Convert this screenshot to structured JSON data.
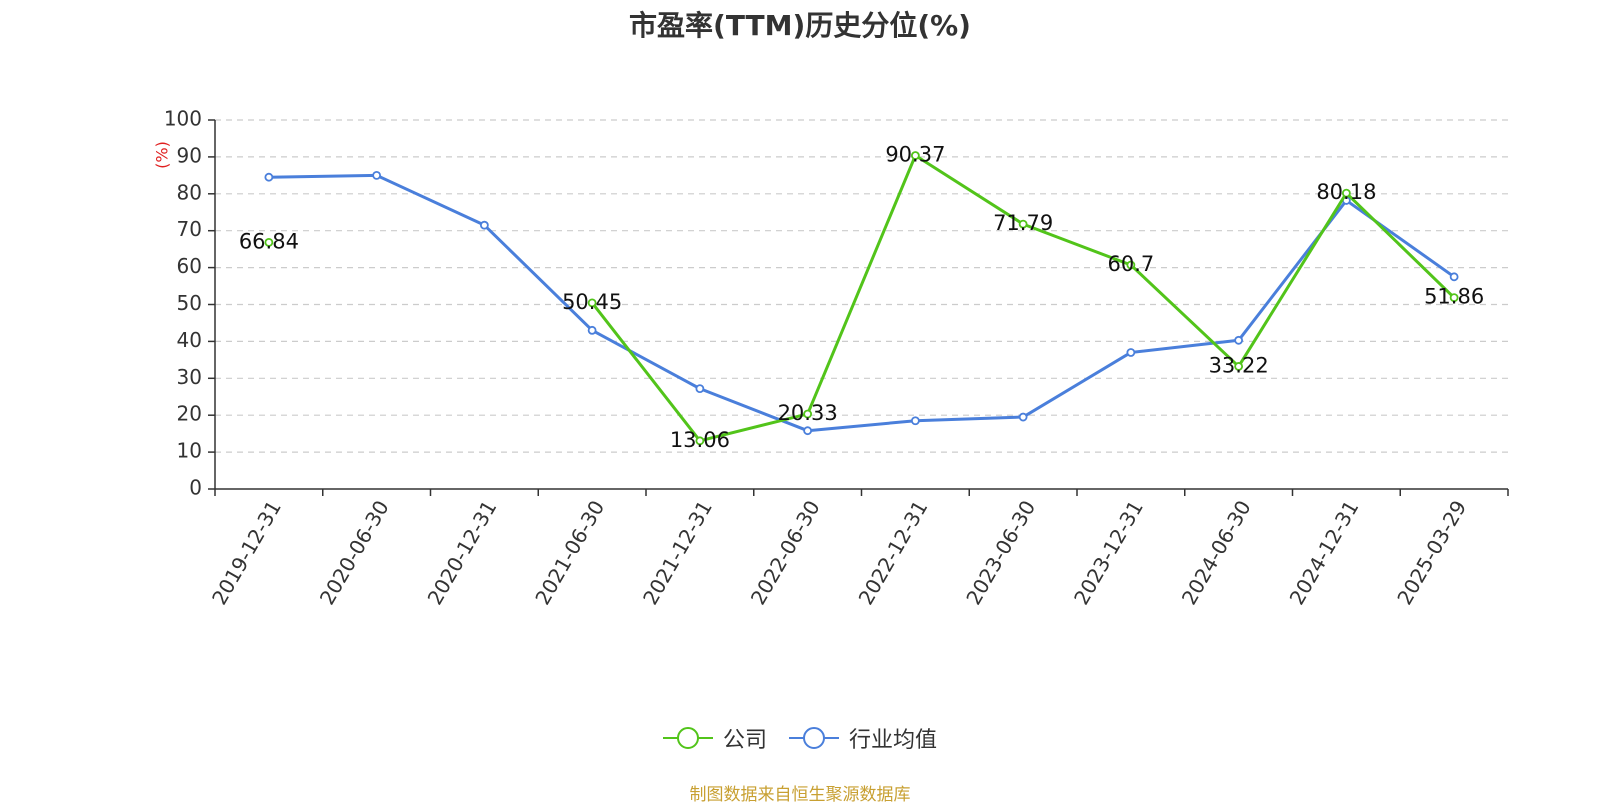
{
  "chart_data": {
    "type": "line",
    "title": "市盈率(TTM)历史分位(%)",
    "ylabel": "(%)",
    "ylim": [
      0,
      100
    ],
    "yticks": [
      0,
      10,
      20,
      30,
      40,
      50,
      60,
      70,
      80,
      90,
      100
    ],
    "categories": [
      "2019-12-31",
      "2020-06-30",
      "2020-12-31",
      "2021-06-30",
      "2021-12-31",
      "2022-06-30",
      "2022-12-31",
      "2023-06-30",
      "2023-12-31",
      "2024-06-30",
      "2024-12-31",
      "2025-03-29"
    ],
    "grid": true,
    "legend_position": "bottom-center",
    "series": [
      {
        "name": "公司",
        "color": "#52c41a",
        "show_labels": true,
        "values": [
          66.84,
          null,
          null,
          50.45,
          13.06,
          20.33,
          90.37,
          71.79,
          60.7,
          33.22,
          80.18,
          51.86
        ]
      },
      {
        "name": "行业均值",
        "color": "#4a7fdb",
        "show_labels": false,
        "values": [
          84.5,
          85.0,
          71.5,
          43.0,
          27.2,
          15.8,
          18.5,
          19.5,
          37.0,
          40.3,
          78.2,
          57.5
        ]
      }
    ]
  },
  "source_note": "制图数据来自恒生聚源数据库"
}
